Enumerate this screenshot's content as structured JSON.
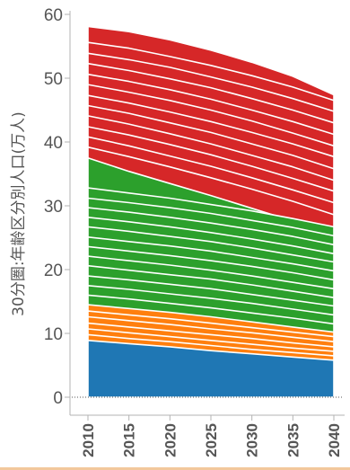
{
  "chart_data": {
    "type": "area",
    "ylabel": "30分圏:年齢区分別人口(万人)",
    "xlabel": "",
    "x": [
      2010,
      2015,
      2020,
      2025,
      2030,
      2035,
      2040
    ],
    "x_ticks": [
      "2010",
      "2015",
      "2020",
      "2025",
      "2030",
      "2035",
      "2040"
    ],
    "y_ticks": [
      "0",
      "10",
      "20",
      "30",
      "40",
      "50",
      "60"
    ],
    "ylim": [
      0,
      60
    ],
    "grid": false,
    "colors": {
      "blue": "#1f77b4",
      "orange": "#ff7f0e",
      "green": "#2ca02c",
      "red": "#d62728"
    },
    "series": [
      {
        "color": "blue",
        "values": [
          8.9,
          8.4,
          7.9,
          7.3,
          6.8,
          6.3,
          5.8
        ]
      },
      {
        "color": "orange",
        "values": [
          9.8,
          9.2,
          8.7,
          8.1,
          7.5,
          7.0,
          6.5
        ]
      },
      {
        "color": "orange",
        "values": [
          10.7,
          10.1,
          9.5,
          8.9,
          8.3,
          7.7,
          7.2
        ]
      },
      {
        "color": "orange",
        "values": [
          11.6,
          11.0,
          10.4,
          9.8,
          9.2,
          8.5,
          7.9
        ]
      },
      {
        "color": "orange",
        "values": [
          12.6,
          12.0,
          11.4,
          10.7,
          10.1,
          9.4,
          8.7
        ]
      },
      {
        "color": "orange",
        "values": [
          13.5,
          12.9,
          12.3,
          11.6,
          10.9,
          10.2,
          9.5
        ]
      },
      {
        "color": "orange",
        "values": [
          14.5,
          13.9,
          13.3,
          12.6,
          11.8,
          11.0,
          10.2
        ]
      },
      {
        "color": "green",
        "values": [
          16.0,
          15.4,
          14.7,
          14.0,
          13.2,
          12.4,
          11.5
        ]
      },
      {
        "color": "green",
        "values": [
          17.5,
          16.9,
          16.2,
          15.5,
          14.7,
          13.8,
          12.9
        ]
      },
      {
        "color": "green",
        "values": [
          19.0,
          18.4,
          17.7,
          17.0,
          16.1,
          15.2,
          14.3
        ]
      },
      {
        "color": "green",
        "values": [
          20.6,
          19.9,
          19.2,
          18.5,
          17.6,
          16.6,
          15.6
        ]
      },
      {
        "color": "green",
        "values": [
          22.1,
          21.4,
          20.7,
          19.9,
          19.0,
          18.0,
          17.0
        ]
      },
      {
        "color": "green",
        "values": [
          23.6,
          22.9,
          22.2,
          21.4,
          20.5,
          19.5,
          18.4
        ]
      },
      {
        "color": "green",
        "values": [
          25.1,
          24.4,
          23.7,
          22.9,
          21.9,
          20.9,
          19.8
        ]
      },
      {
        "color": "green",
        "values": [
          26.7,
          26.0,
          25.2,
          24.4,
          23.4,
          22.3,
          21.2
        ]
      },
      {
        "color": "green",
        "values": [
          28.2,
          27.5,
          26.7,
          25.8,
          24.8,
          23.7,
          22.5
        ]
      },
      {
        "color": "green",
        "values": [
          29.7,
          29.0,
          28.2,
          27.3,
          26.3,
          25.2,
          23.9
        ]
      },
      {
        "color": "green",
        "values": [
          31.2,
          30.5,
          29.7,
          28.8,
          27.7,
          26.6,
          25.3
        ]
      },
      {
        "color": "green",
        "values": [
          32.8,
          32.0,
          31.2,
          30.2,
          29.2,
          28.0,
          26.7
        ]
      },
      {
        "color": "green",
        "values": [
          37.5,
          35.4,
          33.5,
          31.6,
          29.6,
          27.6,
          25.5
        ]
      },
      {
        "color": "red",
        "values": [
          39.2,
          37.7,
          36.1,
          34.4,
          32.6,
          30.7,
          28.6
        ]
      },
      {
        "color": "red",
        "values": [
          40.8,
          39.4,
          37.8,
          36.2,
          34.4,
          32.5,
          30.5
        ]
      },
      {
        "color": "red",
        "values": [
          42.4,
          41.1,
          39.6,
          38.0,
          36.2,
          34.3,
          32.3
        ]
      },
      {
        "color": "red",
        "values": [
          44.1,
          42.8,
          41.3,
          39.7,
          37.9,
          36.1,
          34.0
        ]
      },
      {
        "color": "red",
        "values": [
          45.7,
          44.5,
          43.0,
          41.5,
          39.7,
          37.9,
          35.8
        ]
      },
      {
        "color": "red",
        "values": [
          47.3,
          46.1,
          44.7,
          43.2,
          41.5,
          39.7,
          37.7
        ]
      },
      {
        "color": "red",
        "values": [
          49.0,
          47.8,
          46.5,
          45.0,
          43.3,
          41.4,
          39.4
        ]
      },
      {
        "color": "red",
        "values": [
          50.6,
          49.5,
          48.2,
          46.7,
          45.0,
          43.2,
          41.2
        ]
      },
      {
        "color": "red",
        "values": [
          52.3,
          51.2,
          49.9,
          48.5,
          46.8,
          45.0,
          43.0
        ]
      },
      {
        "color": "red",
        "values": [
          53.9,
          52.9,
          51.7,
          50.2,
          48.6,
          46.8,
          44.8
        ]
      },
      {
        "color": "red",
        "values": [
          55.6,
          54.7,
          53.4,
          52.0,
          50.4,
          48.6,
          46.5
        ]
      },
      {
        "color": "red",
        "values": [
          58.1,
          57.3,
          56.0,
          54.4,
          52.5,
          50.3,
          47.4
        ]
      }
    ]
  }
}
